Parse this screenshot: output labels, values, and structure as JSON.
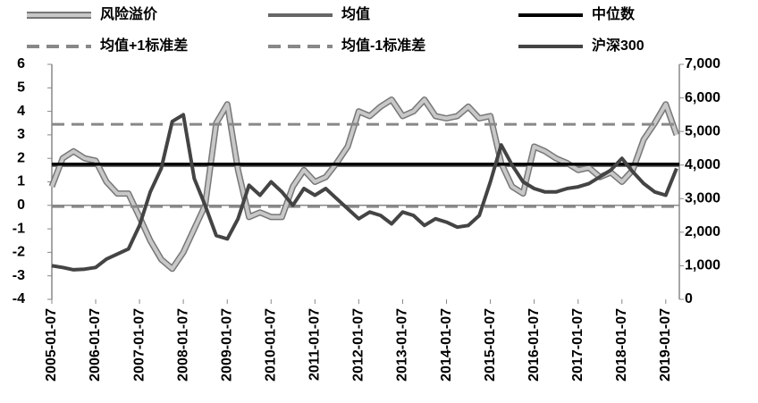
{
  "chart_data": {
    "type": "line",
    "x": [
      "2005-01-07",
      "2005-04-07",
      "2005-07-07",
      "2005-10-07",
      "2006-01-07",
      "2006-04-07",
      "2006-07-07",
      "2006-10-07",
      "2007-01-07",
      "2007-04-07",
      "2007-07-07",
      "2007-10-07",
      "2008-01-07",
      "2008-04-07",
      "2008-07-07",
      "2008-10-07",
      "2009-01-07",
      "2009-04-07",
      "2009-07-07",
      "2009-10-07",
      "2010-01-07",
      "2010-04-07",
      "2010-07-07",
      "2010-10-07",
      "2011-01-07",
      "2011-04-07",
      "2011-07-07",
      "2011-10-07",
      "2012-01-07",
      "2012-04-07",
      "2012-07-07",
      "2012-10-07",
      "2013-01-07",
      "2013-04-07",
      "2013-07-07",
      "2013-10-07",
      "2014-01-07",
      "2014-04-07",
      "2014-07-07",
      "2014-10-07",
      "2015-01-07",
      "2015-04-07",
      "2015-07-07",
      "2015-10-07",
      "2016-01-07",
      "2016-04-07",
      "2016-07-07",
      "2016-10-07",
      "2017-01-07",
      "2017-04-07",
      "2017-07-07",
      "2017-10-07",
      "2018-01-07",
      "2018-04-07",
      "2018-07-07",
      "2018-10-07",
      "2019-01-07",
      "2019-04-07"
    ],
    "series": [
      {
        "name": "风险溢价",
        "color": "#c8c8c8",
        "outline": "#777777",
        "values": [
          0.8,
          2.0,
          2.3,
          2.0,
          1.9,
          1.0,
          0.5,
          0.5,
          -0.5,
          -1.5,
          -2.3,
          -2.7,
          -2.0,
          -1.0,
          0.0,
          3.5,
          4.3,
          1.5,
          -0.5,
          -0.3,
          -0.5,
          -0.5,
          0.8,
          1.5,
          1.0,
          1.2,
          1.8,
          2.5,
          4.0,
          3.8,
          4.2,
          4.5,
          3.8,
          4.0,
          4.5,
          3.8,
          3.7,
          3.8,
          4.2,
          3.7,
          3.8,
          1.8,
          0.8,
          0.5,
          2.5,
          2.3,
          2.0,
          1.8,
          1.5,
          1.6,
          1.2,
          1.4,
          1.0,
          1.5,
          2.8,
          3.5,
          4.3,
          3.0
        ]
      },
      {
        "name": "均值",
        "color": "#666666",
        "value": 1.7
      },
      {
        "name": "中位数",
        "color": "#000000",
        "value": 1.75
      },
      {
        "name": "均值+1标准差",
        "color": "#888888",
        "dash": true,
        "value": 3.45
      },
      {
        "name": "均值-1标准差",
        "color": "#888888",
        "dash": true,
        "value": -0.05
      },
      {
        "name": "沪深300",
        "color": "#444444",
        "axis": "y2",
        "values": [
          1000,
          950,
          880,
          900,
          950,
          1200,
          1350,
          1500,
          2200,
          3200,
          3900,
          5300,
          5500,
          3600,
          2800,
          1900,
          1800,
          2400,
          3400,
          3100,
          3500,
          3200,
          2800,
          3300,
          3100,
          3300,
          3000,
          2700,
          2400,
          2600,
          2500,
          2250,
          2600,
          2500,
          2200,
          2400,
          2300,
          2150,
          2200,
          2500,
          3500,
          4600,
          4000,
          3500,
          3300,
          3200,
          3200,
          3300,
          3350,
          3450,
          3650,
          3850,
          4200,
          3800,
          3450,
          3200,
          3100,
          3900
        ]
      }
    ],
    "xlim": [
      "2005-01-07",
      "2019-04-30"
    ],
    "xticks": [
      "2005-01-07",
      "2006-01-07",
      "2007-01-07",
      "2008-01-07",
      "2009-01-07",
      "2010-01-07",
      "2011-01-07",
      "2012-01-07",
      "2013-01-07",
      "2014-01-07",
      "2015-01-07",
      "2016-01-07",
      "2017-01-07",
      "2018-01-07",
      "2019-01-07"
    ],
    "ylim": [
      -4,
      6
    ],
    "yticks": [
      -4,
      -3,
      -2,
      -1,
      0,
      1,
      2,
      3,
      4,
      5,
      6
    ],
    "y2lim": [
      0,
      7000
    ],
    "y2ticks": [
      0,
      {
        "value": 1000,
        "label": "1,000"
      },
      {
        "value": 2000,
        "label": "2,000"
      },
      {
        "value": 3000,
        "label": "3,000"
      },
      {
        "value": 4000,
        "label": "4,000"
      },
      {
        "value": 5000,
        "label": "5,000"
      },
      {
        "value": 6000,
        "label": "6,000"
      },
      {
        "value": 7000,
        "label": "7,000"
      }
    ]
  }
}
